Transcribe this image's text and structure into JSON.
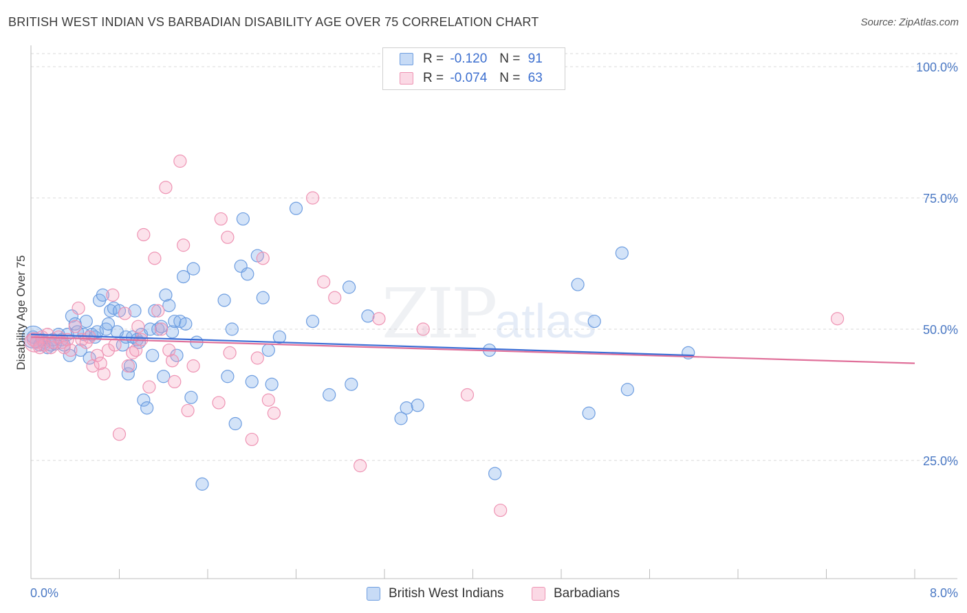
{
  "header": {
    "title": "BRITISH WEST INDIAN VS BARBADIAN DISABILITY AGE OVER 75 CORRELATION CHART",
    "source": "Source: ZipAtlas.com"
  },
  "legend": {
    "rows": [
      {
        "r_label": "R =",
        "r_value": "-0.120",
        "n_label": "N =",
        "n_value": "91"
      },
      {
        "r_label": "R =",
        "r_value": "-0.074",
        "n_label": "N =",
        "n_value": "63"
      }
    ]
  },
  "bottom_legend": {
    "series1": "British West Indians",
    "series2": "Barbadians"
  },
  "watermark": {
    "zip": "ZIP",
    "atlas": "atlas"
  },
  "colors": {
    "blue_fill": "rgba(130,175,235,0.35)",
    "blue_stroke": "#6d9de0",
    "blue_line": "#3b6fd6",
    "pink_fill": "rgba(245,160,190,0.30)",
    "pink_stroke": "#ee93b3",
    "pink_line": "#e0709a",
    "axis_text": "#4a78c4",
    "grid": "#d8d8d8"
  },
  "chart_data": {
    "type": "scatter",
    "title": "BRITISH WEST INDIAN VS BARBADIAN DISABILITY AGE OVER 75 CORRELATION CHART",
    "xlabel": "",
    "ylabel": "Disability Age Over 75",
    "xlim": [
      0,
      8
    ],
    "ylim": [
      0,
      105
    ],
    "x_tick_labels": [
      "0.0%",
      "8.0%"
    ],
    "y_ticks": [
      25,
      50,
      75,
      100
    ],
    "y_tick_labels": [
      "25.0%",
      "50.0%",
      "75.0%",
      "100.0%"
    ],
    "grid": true,
    "series": [
      {
        "name": "British West Indians",
        "r": -0.12,
        "n": 91,
        "trend": {
          "x": [
            0.0,
            6.0
          ],
          "y": [
            49.0,
            45.0
          ]
        },
        "points": [
          [
            0.02,
            48.5
          ],
          [
            0.05,
            47.5
          ],
          [
            0.08,
            47.0
          ],
          [
            0.1,
            48.0
          ],
          [
            0.12,
            47.5
          ],
          [
            0.15,
            46.5
          ],
          [
            0.18,
            47.0
          ],
          [
            0.2,
            48.0
          ],
          [
            0.22,
            47.2
          ],
          [
            0.25,
            49.0
          ],
          [
            0.28,
            48.0
          ],
          [
            0.3,
            47.0
          ],
          [
            0.33,
            49.0
          ],
          [
            0.35,
            45.0
          ],
          [
            0.37,
            52.5
          ],
          [
            0.4,
            51.0
          ],
          [
            0.42,
            49.5
          ],
          [
            0.45,
            46.0
          ],
          [
            0.48,
            49.0
          ],
          [
            0.5,
            51.5
          ],
          [
            0.53,
            44.5
          ],
          [
            0.55,
            49.0
          ],
          [
            0.58,
            48.5
          ],
          [
            0.6,
            49.5
          ],
          [
            0.62,
            55.5
          ],
          [
            0.65,
            56.5
          ],
          [
            0.68,
            50.0
          ],
          [
            0.7,
            51.0
          ],
          [
            0.72,
            53.5
          ],
          [
            0.75,
            54.0
          ],
          [
            0.78,
            49.5
          ],
          [
            0.8,
            53.5
          ],
          [
            0.83,
            47.0
          ],
          [
            0.86,
            48.5
          ],
          [
            0.88,
            41.5
          ],
          [
            0.9,
            43.0
          ],
          [
            0.92,
            48.5
          ],
          [
            0.94,
            53.5
          ],
          [
            0.96,
            48.0
          ],
          [
            0.98,
            47.5
          ],
          [
            1.0,
            49.0
          ],
          [
            1.02,
            36.5
          ],
          [
            1.05,
            35.0
          ],
          [
            1.08,
            50.0
          ],
          [
            1.1,
            45.0
          ],
          [
            1.12,
            53.5
          ],
          [
            1.15,
            50.0
          ],
          [
            1.18,
            50.5
          ],
          [
            1.2,
            41.0
          ],
          [
            1.22,
            56.5
          ],
          [
            1.25,
            54.5
          ],
          [
            1.28,
            49.5
          ],
          [
            1.3,
            51.5
          ],
          [
            1.32,
            45.0
          ],
          [
            1.35,
            51.5
          ],
          [
            1.38,
            60.0
          ],
          [
            1.4,
            51.0
          ],
          [
            1.45,
            37.0
          ],
          [
            1.47,
            61.5
          ],
          [
            1.5,
            47.5
          ],
          [
            1.55,
            20.5
          ],
          [
            1.75,
            55.5
          ],
          [
            1.78,
            41.0
          ],
          [
            1.82,
            50.0
          ],
          [
            1.85,
            32.0
          ],
          [
            1.9,
            62.0
          ],
          [
            1.92,
            71.0
          ],
          [
            1.96,
            60.5
          ],
          [
            2.0,
            40.0
          ],
          [
            2.05,
            64.0
          ],
          [
            2.1,
            56.0
          ],
          [
            2.15,
            46.0
          ],
          [
            2.18,
            39.5
          ],
          [
            2.25,
            48.5
          ],
          [
            2.4,
            73.0
          ],
          [
            2.55,
            51.5
          ],
          [
            2.7,
            37.5
          ],
          [
            2.88,
            58.0
          ],
          [
            2.9,
            39.5
          ],
          [
            3.05,
            52.5
          ],
          [
            3.35,
            33.0
          ],
          [
            3.4,
            35.0
          ],
          [
            3.5,
            35.5
          ],
          [
            4.15,
            46.0
          ],
          [
            4.2,
            22.5
          ],
          [
            4.95,
            58.5
          ],
          [
            5.05,
            34.0
          ],
          [
            5.1,
            51.5
          ],
          [
            5.35,
            64.5
          ],
          [
            5.4,
            38.5
          ],
          [
            5.95,
            45.5
          ]
        ]
      },
      {
        "name": "Barbadians",
        "r": -0.074,
        "n": 63,
        "trend": {
          "x": [
            0.0,
            8.0
          ],
          "y": [
            48.5,
            43.5
          ]
        },
        "points": [
          [
            0.02,
            48.0
          ],
          [
            0.05,
            47.5
          ],
          [
            0.08,
            46.5
          ],
          [
            0.1,
            48.5
          ],
          [
            0.12,
            47.0
          ],
          [
            0.15,
            49.0
          ],
          [
            0.18,
            46.5
          ],
          [
            0.2,
            47.5
          ],
          [
            0.25,
            48.5
          ],
          [
            0.28,
            47.5
          ],
          [
            0.3,
            46.5
          ],
          [
            0.33,
            48.0
          ],
          [
            0.36,
            46.0
          ],
          [
            0.4,
            50.5
          ],
          [
            0.43,
            54.0
          ],
          [
            0.46,
            48.0
          ],
          [
            0.5,
            47.5
          ],
          [
            0.53,
            48.5
          ],
          [
            0.56,
            43.0
          ],
          [
            0.6,
            45.0
          ],
          [
            0.63,
            43.5
          ],
          [
            0.66,
            41.5
          ],
          [
            0.7,
            46.0
          ],
          [
            0.74,
            56.5
          ],
          [
            0.76,
            47.0
          ],
          [
            0.8,
            30.0
          ],
          [
            0.85,
            53.0
          ],
          [
            0.88,
            43.0
          ],
          [
            0.92,
            45.5
          ],
          [
            0.95,
            46.0
          ],
          [
            0.97,
            50.5
          ],
          [
            1.0,
            48.0
          ],
          [
            1.02,
            68.0
          ],
          [
            1.07,
            39.0
          ],
          [
            1.12,
            63.5
          ],
          [
            1.15,
            53.5
          ],
          [
            1.18,
            50.0
          ],
          [
            1.22,
            77.0
          ],
          [
            1.25,
            46.0
          ],
          [
            1.28,
            44.0
          ],
          [
            1.3,
            40.0
          ],
          [
            1.35,
            82.0
          ],
          [
            1.38,
            66.0
          ],
          [
            1.42,
            34.5
          ],
          [
            1.47,
            43.0
          ],
          [
            1.7,
            36.0
          ],
          [
            1.72,
            71.0
          ],
          [
            1.78,
            67.5
          ],
          [
            1.8,
            45.5
          ],
          [
            2.0,
            29.0
          ],
          [
            2.05,
            44.5
          ],
          [
            2.1,
            63.5
          ],
          [
            2.15,
            36.5
          ],
          [
            2.2,
            34.0
          ],
          [
            2.55,
            75.0
          ],
          [
            2.65,
            59.0
          ],
          [
            2.75,
            56.0
          ],
          [
            2.98,
            24.0
          ],
          [
            3.15,
            52.0
          ],
          [
            3.55,
            50.0
          ],
          [
            3.95,
            37.5
          ],
          [
            4.25,
            15.5
          ],
          [
            7.3,
            52.0
          ]
        ]
      }
    ]
  }
}
